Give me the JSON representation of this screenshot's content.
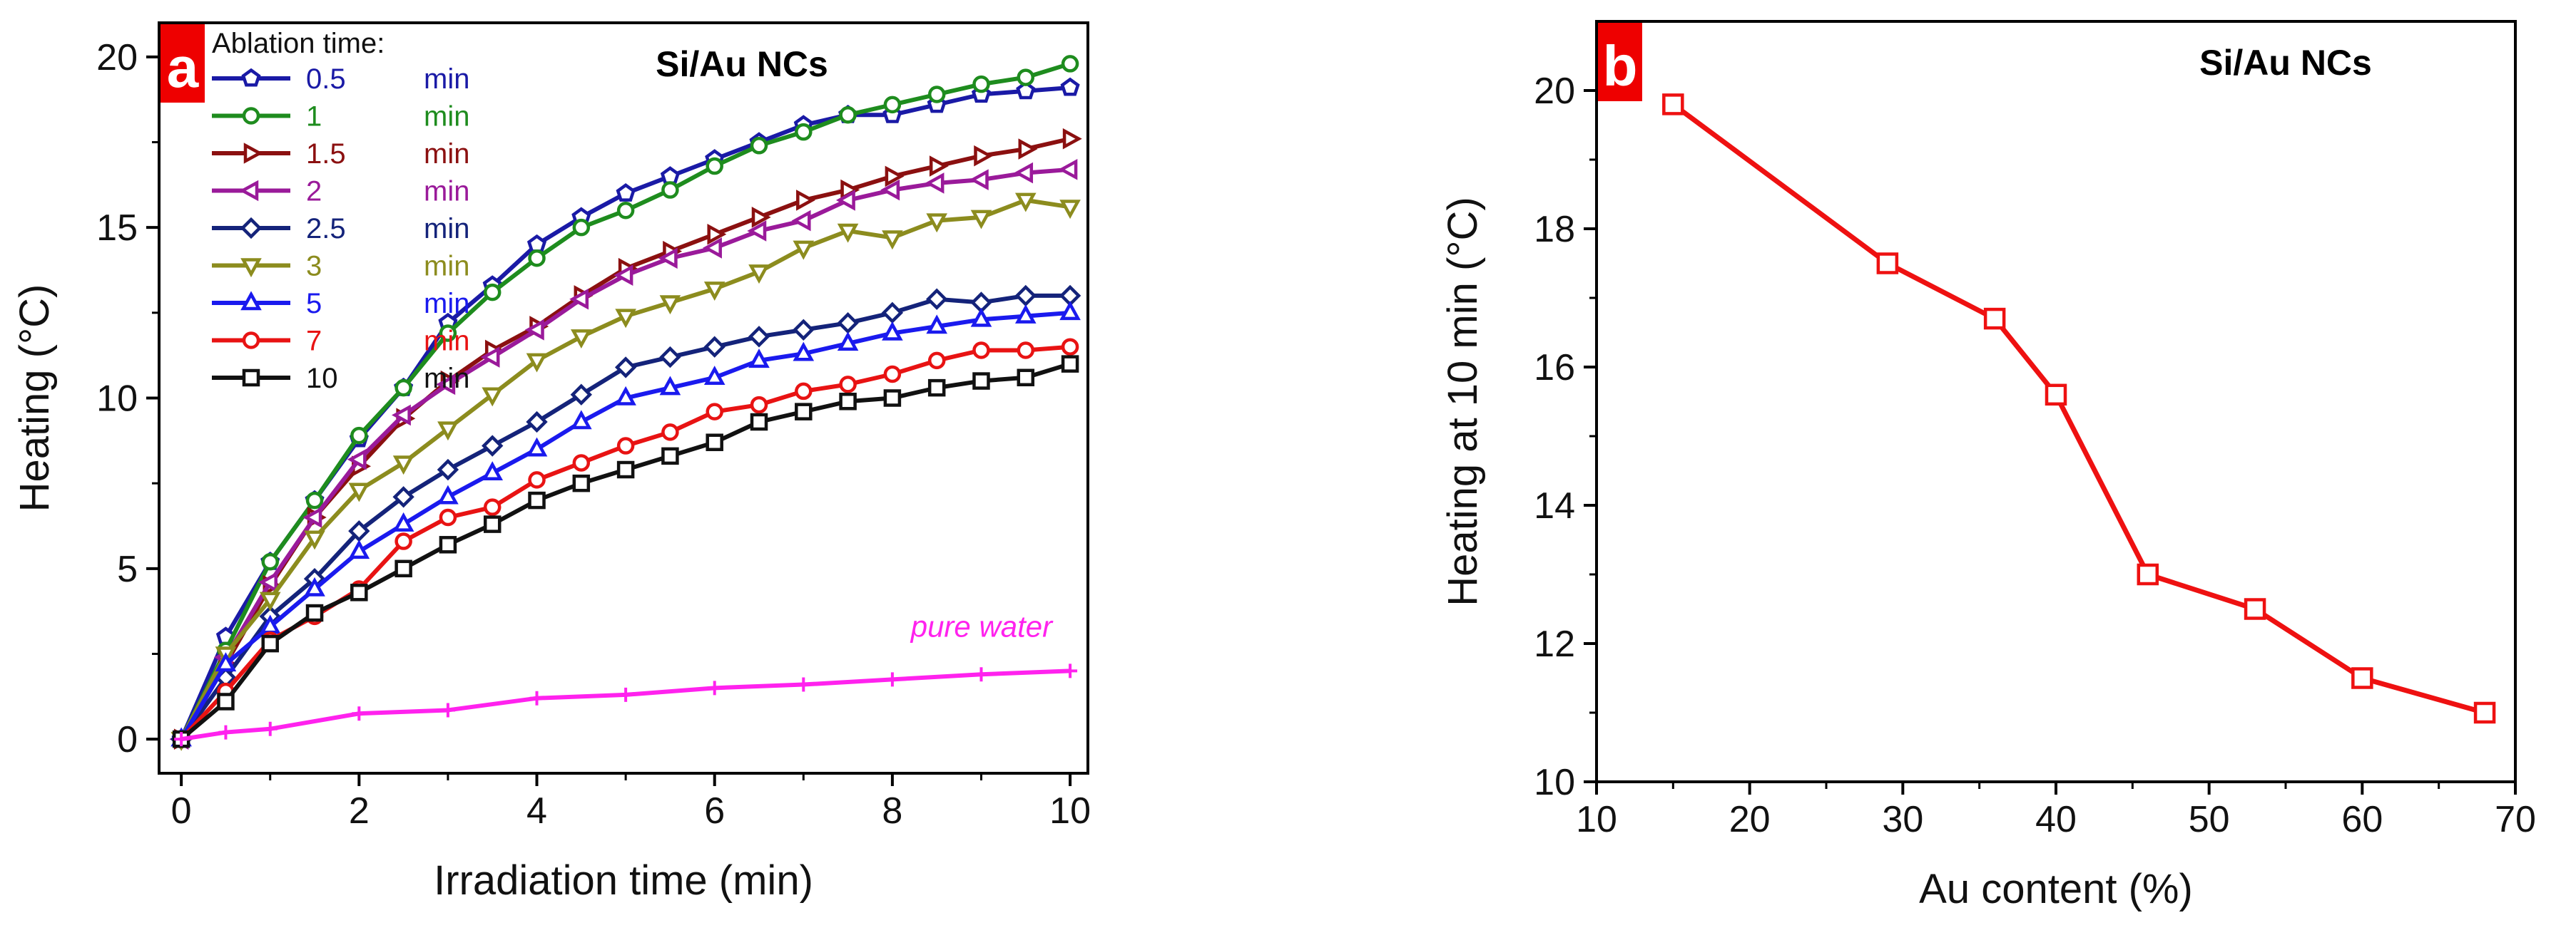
{
  "chart_data": [
    {
      "panel": "a",
      "type": "line",
      "title": "Si/Au NCs",
      "xlabel": "Irradiation time (min)",
      "ylabel": "Heating (°C)",
      "xlim": [
        -0.25,
        10.2
      ],
      "ylim": [
        -1,
        21
      ],
      "xticks": [
        0,
        2,
        4,
        6,
        8,
        10
      ],
      "xtick_labels": [
        "0",
        "2",
        "4",
        "6",
        "8",
        "10"
      ],
      "yticks": [
        0,
        5,
        10,
        15,
        20
      ],
      "ytick_labels": [
        "0",
        "5",
        "10",
        "15",
        "20"
      ],
      "legend_title": "Ablation time:",
      "legend_position": "top-left",
      "annotation": "pure water",
      "series": [
        {
          "name": "0.5",
          "unit": "min",
          "color": "#1a1aa6",
          "marker": "pentagon",
          "x": [
            0,
            0.5,
            1,
            1.5,
            2,
            2.5,
            3,
            3.5,
            4,
            4.5,
            5,
            5.5,
            6,
            6.5,
            7,
            7.5,
            8,
            8.5,
            9,
            9.5,
            10
          ],
          "values": [
            0,
            3.0,
            5.2,
            7.0,
            8.8,
            10.3,
            12.2,
            13.3,
            14.5,
            15.3,
            16.0,
            16.5,
            17.0,
            17.5,
            18.0,
            18.3,
            18.3,
            18.6,
            18.9,
            19.0,
            19.1
          ]
        },
        {
          "name": "1",
          "unit": "min",
          "color": "#1e8c1e",
          "marker": "circle",
          "x": [
            0,
            0.5,
            1,
            1.5,
            2,
            2.5,
            3,
            3.5,
            4,
            4.5,
            5,
            5.5,
            6,
            6.5,
            7,
            7.5,
            8,
            8.5,
            9,
            9.5,
            10
          ],
          "values": [
            0,
            2.6,
            5.2,
            7.0,
            8.9,
            10.3,
            11.9,
            13.1,
            14.1,
            15.0,
            15.5,
            16.1,
            16.8,
            17.4,
            17.8,
            18.3,
            18.6,
            18.9,
            19.2,
            19.4,
            19.8
          ]
        },
        {
          "name": "1.5",
          "unit": "min",
          "color": "#8b1010",
          "marker": "triangle-right",
          "x": [
            0,
            0.5,
            1,
            1.5,
            2,
            2.5,
            3,
            3.5,
            4,
            4.5,
            5,
            5.5,
            6,
            6.5,
            7,
            7.5,
            8,
            8.5,
            9,
            9.5,
            10
          ],
          "values": [
            0,
            2.2,
            4.5,
            6.5,
            8.0,
            9.4,
            10.5,
            11.4,
            12.1,
            13.0,
            13.8,
            14.3,
            14.8,
            15.3,
            15.8,
            16.1,
            16.5,
            16.8,
            17.1,
            17.3,
            17.6
          ]
        },
        {
          "name": "2",
          "unit": "min",
          "color": "#9a1a9a",
          "marker": "triangle-left",
          "x": [
            0,
            0.5,
            1,
            1.5,
            2,
            2.5,
            3,
            3.5,
            4,
            4.5,
            5,
            5.5,
            6,
            6.5,
            7,
            7.5,
            8,
            8.5,
            9,
            9.5,
            10
          ],
          "values": [
            0,
            2.4,
            4.6,
            6.5,
            8.2,
            9.5,
            10.4,
            11.2,
            12.0,
            12.9,
            13.6,
            14.1,
            14.4,
            14.9,
            15.2,
            15.8,
            16.1,
            16.3,
            16.4,
            16.6,
            16.7
          ]
        },
        {
          "name": "2.5",
          "unit": "min",
          "color": "#14237a",
          "marker": "diamond",
          "x": [
            0,
            0.5,
            1,
            1.5,
            2,
            2.5,
            3,
            3.5,
            4,
            4.5,
            5,
            5.5,
            6,
            6.5,
            7,
            7.5,
            8,
            8.5,
            9,
            9.5,
            10
          ],
          "values": [
            0,
            1.8,
            3.6,
            4.7,
            6.1,
            7.1,
            7.9,
            8.6,
            9.3,
            10.1,
            10.9,
            11.2,
            11.5,
            11.8,
            12.0,
            12.2,
            12.5,
            12.9,
            12.8,
            13.0,
            13.0
          ]
        },
        {
          "name": "3",
          "unit": "min",
          "color": "#8c8c1e",
          "marker": "triangle-down",
          "x": [
            0,
            0.5,
            1,
            1.5,
            2,
            2.5,
            3,
            3.5,
            4,
            4.5,
            5,
            5.5,
            6,
            6.5,
            7,
            7.5,
            8,
            8.5,
            9,
            9.5,
            10
          ],
          "values": [
            0,
            2.5,
            4.1,
            5.9,
            7.3,
            8.1,
            9.1,
            10.1,
            11.1,
            11.8,
            12.4,
            12.8,
            13.2,
            13.7,
            14.4,
            14.9,
            14.7,
            15.2,
            15.3,
            15.8,
            15.6
          ]
        },
        {
          "name": "5",
          "unit": "min",
          "color": "#1a1aee",
          "marker": "triangle-up",
          "x": [
            0,
            0.5,
            1,
            1.5,
            2,
            2.5,
            3,
            3.5,
            4,
            4.5,
            5,
            5.5,
            6,
            6.5,
            7,
            7.5,
            8,
            8.5,
            9,
            9.5,
            10
          ],
          "values": [
            0,
            2.2,
            3.3,
            4.4,
            5.5,
            6.3,
            7.1,
            7.8,
            8.5,
            9.3,
            10.0,
            10.3,
            10.6,
            11.1,
            11.3,
            11.6,
            11.9,
            12.1,
            12.3,
            12.4,
            12.5
          ]
        },
        {
          "name": "7",
          "unit": "min",
          "color": "#e81313",
          "marker": "circle",
          "x": [
            0,
            0.5,
            1,
            1.5,
            2,
            2.5,
            3,
            3.5,
            4,
            4.5,
            5,
            5.5,
            6,
            6.5,
            7,
            7.5,
            8,
            8.5,
            9,
            9.5,
            10
          ],
          "values": [
            0,
            1.4,
            2.9,
            3.6,
            4.4,
            5.8,
            6.5,
            6.8,
            7.6,
            8.1,
            8.6,
            9.0,
            9.6,
            9.8,
            10.2,
            10.4,
            10.7,
            11.1,
            11.4,
            11.4,
            11.5
          ]
        },
        {
          "name": "10",
          "unit": "min",
          "color": "#111111",
          "marker": "square",
          "x": [
            0,
            0.5,
            1,
            1.5,
            2,
            2.5,
            3,
            3.5,
            4,
            4.5,
            5,
            5.5,
            6,
            6.5,
            7,
            7.5,
            8,
            8.5,
            9,
            9.5,
            10
          ],
          "values": [
            0,
            1.1,
            2.8,
            3.7,
            4.3,
            5.0,
            5.7,
            6.3,
            7.0,
            7.5,
            7.9,
            8.3,
            8.7,
            9.3,
            9.6,
            9.9,
            10.0,
            10.3,
            10.5,
            10.6,
            11.0
          ]
        },
        {
          "name": "pure water",
          "unit": "",
          "color": "#ff22ee",
          "marker": "plus",
          "in_legend": false,
          "x": [
            0,
            0.5,
            1,
            2,
            3,
            4,
            5,
            6,
            7,
            8,
            9,
            10
          ],
          "values": [
            0,
            0.2,
            0.3,
            0.75,
            0.85,
            1.2,
            1.3,
            1.5,
            1.6,
            1.75,
            1.9,
            2.0
          ]
        }
      ]
    },
    {
      "panel": "b",
      "type": "line",
      "title": "Si/Au NCs",
      "xlabel": "Au content (%)",
      "ylabel": "Heating at 10 min (°C)",
      "xlim": [
        10,
        70
      ],
      "ylim": [
        10,
        21
      ],
      "xticks": [
        10,
        20,
        30,
        40,
        50,
        60,
        70
      ],
      "xtick_labels": [
        "10",
        "20",
        "30",
        "40",
        "50",
        "60",
        "70"
      ],
      "yticks": [
        10,
        12,
        14,
        16,
        18,
        20
      ],
      "ytick_labels": [
        "10",
        "12",
        "14",
        "16",
        "18",
        "20"
      ],
      "series": [
        {
          "name": "Heating at 10 min",
          "color": "#ee1111",
          "marker": "square",
          "x": [
            15,
            29,
            36,
            40,
            46,
            53,
            60,
            68
          ],
          "values": [
            19.8,
            17.5,
            16.7,
            15.6,
            13.0,
            12.5,
            11.5,
            11.0
          ]
        }
      ]
    }
  ]
}
